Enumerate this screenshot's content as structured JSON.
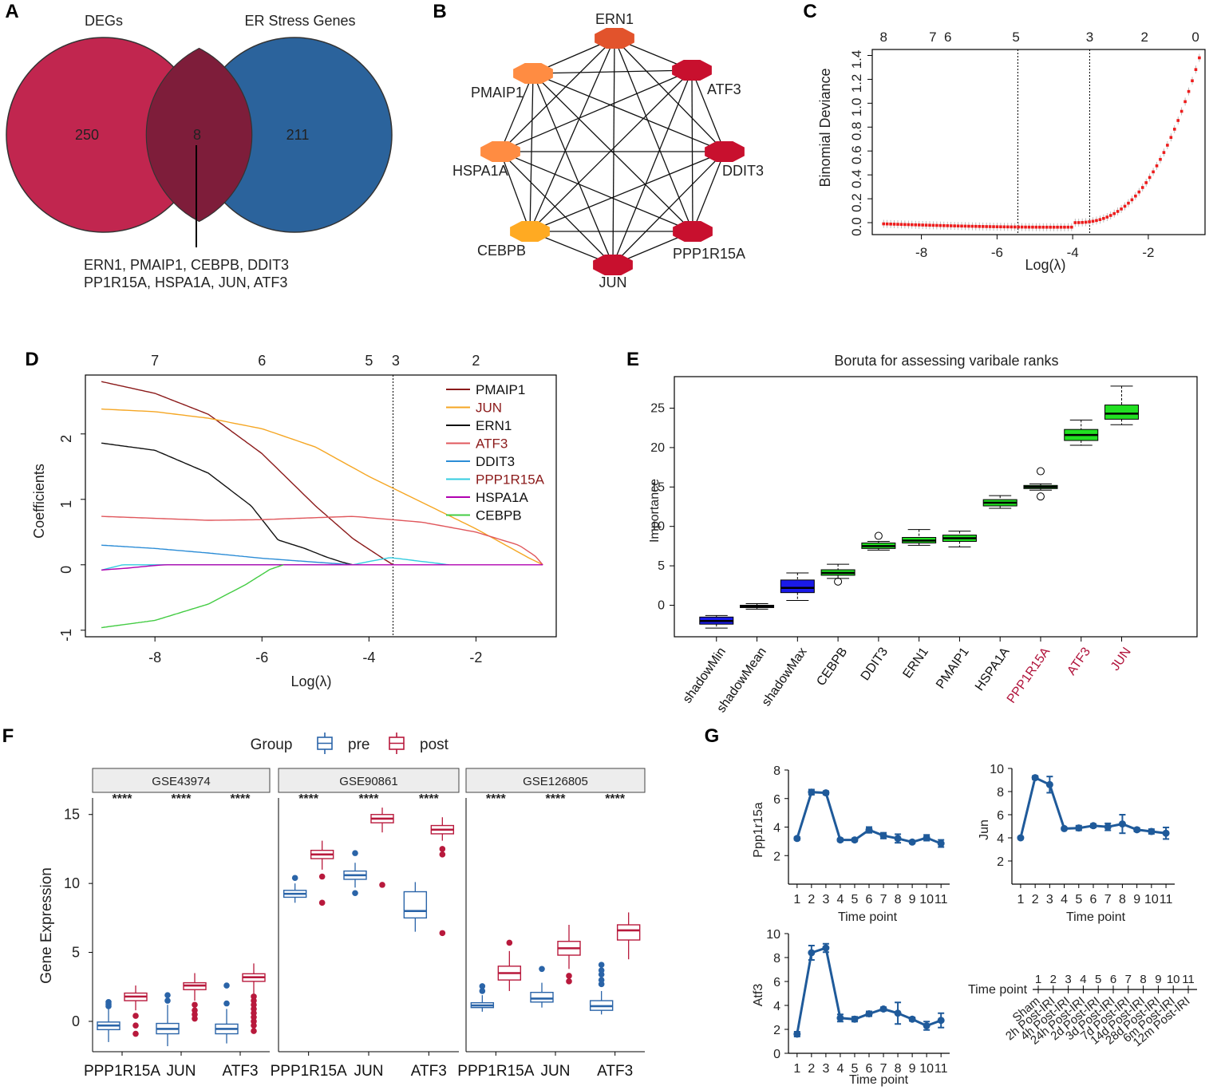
{
  "panel_letters": [
    "A",
    "B",
    "C",
    "D",
    "E",
    "F",
    "G"
  ],
  "colors": {
    "red": "#c1264f",
    "blue": "#2b639c",
    "overlap": "#7e1d3a",
    "node_red": "#c8102e",
    "node_orange": "#ff8c42",
    "node_yellow": "#ffaa22",
    "node_orangered": "#e2532c",
    "lasso_red": "#ee1c1c",
    "boruta_green": "#22e022",
    "boruta_blue": "#1a1ae8",
    "pre": "#2a64a8",
    "post": "#b8193c",
    "line_blue": "#1f5a9a",
    "label_red": "#b0123a",
    "dark_red": "#8b1a1a"
  },
  "chart_data": [
    {
      "panel": "A",
      "type": "venn",
      "sets": [
        {
          "name": "DEGs",
          "count": 250
        },
        {
          "name": "ER Stress Genes",
          "count": 211
        }
      ],
      "overlap": 8,
      "overlap_genes_line1": "ERN1, PMAIP1, CEBPB, DDIT3",
      "overlap_genes_line2": "PP1R15A, HSPA1A, JUN, ATF3"
    },
    {
      "panel": "B",
      "type": "network",
      "nodes": [
        {
          "name": "ERN1",
          "color": "orangered"
        },
        {
          "name": "ATF3",
          "color": "red"
        },
        {
          "name": "DDIT3",
          "color": "red"
        },
        {
          "name": "PPP1R15A",
          "color": "red"
        },
        {
          "name": "JUN",
          "color": "red"
        },
        {
          "name": "CEBPB",
          "color": "yellow"
        },
        {
          "name": "HSPA1A",
          "color": "orange"
        },
        {
          "name": "PMAIP1",
          "color": "orange"
        }
      ],
      "edges": "all pairs connected"
    },
    {
      "panel": "C",
      "type": "scatter",
      "xlabel": "Log(λ)",
      "ylabel": "Binomial Deviance",
      "xlim": [
        -9.3,
        -0.5
      ],
      "ylim": [
        -0.1,
        1.45
      ],
      "xticks": [
        -8,
        -6,
        -4,
        -2
      ],
      "yticks": [
        0.0,
        0.2,
        0.4,
        0.6,
        0.8,
        1.0,
        1.2,
        1.4
      ],
      "top_axis": [
        {
          "x": -9.0,
          "label": "8"
        },
        {
          "x": -7.7,
          "label": "7"
        },
        {
          "x": -7.3,
          "label": "6"
        },
        {
          "x": -5.5,
          "label": "5"
        },
        {
          "x": -3.55,
          "label": "3"
        },
        {
          "x": -2.1,
          "label": "2"
        },
        {
          "x": -0.75,
          "label": "0"
        }
      ],
      "vlines": [
        -5.45,
        -3.55
      ],
      "curve": {
        "x_start": -9.0,
        "x_end": -0.65,
        "n_points": 90,
        "note": "deviance ≈ 0 until about -4, rising to 1.38 at -0.65"
      }
    },
    {
      "panel": "D",
      "type": "line",
      "xlabel": "Log(λ)",
      "ylabel": "Coefficients",
      "xlim": [
        -9.3,
        -0.5
      ],
      "ylim": [
        -1.1,
        2.9
      ],
      "xticks": [
        -8,
        -6,
        -4,
        -2
      ],
      "yticks": [
        -1,
        0,
        1,
        2
      ],
      "top_axis": [
        {
          "x": -8.0,
          "label": "7"
        },
        {
          "x": -6.0,
          "label": "6"
        },
        {
          "x": -4.0,
          "label": "5"
        },
        {
          "x": -3.5,
          "label": "3"
        },
        {
          "x": -2.0,
          "label": "2"
        }
      ],
      "vline": -3.55,
      "series": [
        {
          "name": "PMAIP1",
          "color": "#8b1a1a",
          "label_color": "#111111",
          "x": [
            -9,
            -8,
            -7,
            -6,
            -5,
            -4.3,
            -3.8,
            -3.55
          ],
          "values": [
            2.8,
            2.62,
            2.3,
            1.7,
            0.9,
            0.4,
            0.13,
            0
          ]
        },
        {
          "name": "JUN",
          "color": "#f5a623",
          "label_color": "#8b1a1a",
          "x": [
            -9,
            -8,
            -7,
            -6,
            -5,
            -4,
            -3,
            -2,
            -1,
            -0.75
          ],
          "values": [
            2.38,
            2.34,
            2.24,
            2.08,
            1.8,
            1.35,
            0.95,
            0.55,
            0.1,
            0
          ]
        },
        {
          "name": "ERN1",
          "color": "#111111",
          "label_color": "#111111",
          "x": [
            -9,
            -8,
            -7,
            -6.2,
            -5.7,
            -5.2,
            -4.8,
            -4.5,
            -4.3
          ],
          "values": [
            1.86,
            1.75,
            1.4,
            0.9,
            0.38,
            0.25,
            0.12,
            0.04,
            0
          ]
        },
        {
          "name": "ATF3",
          "color": "#e0575c",
          "label_color": "#8b1a1a",
          "x": [
            -9,
            -8,
            -7,
            -6,
            -5,
            -4.3,
            -4,
            -3,
            -2,
            -1.2,
            -0.9,
            -0.75
          ],
          "values": [
            0.74,
            0.71,
            0.68,
            0.69,
            0.72,
            0.74,
            0.72,
            0.65,
            0.5,
            0.3,
            0.14,
            0
          ]
        },
        {
          "name": "DDIT3",
          "color": "#2b8cd6",
          "label_color": "#111111",
          "x": [
            -9,
            -8,
            -7,
            -6,
            -5,
            -4.3
          ],
          "values": [
            0.3,
            0.25,
            0.18,
            0.1,
            0.04,
            0
          ]
        },
        {
          "name": "PPP1R15A",
          "color": "#33cce0",
          "label_color": "#8b1a1a",
          "x": [
            -9,
            -8.6,
            -8.4,
            -6,
            -4.3,
            -4.0,
            -3.6,
            -3.0,
            -2.5
          ],
          "values": [
            -0.08,
            0,
            0,
            0,
            0,
            0.05,
            0.11,
            0.05,
            0
          ]
        },
        {
          "name": "HSPA1A",
          "color": "#b000b0",
          "label_color": "#111111",
          "x": [
            -9,
            -8.5,
            -8.0,
            -7.8,
            -0.75
          ],
          "values": [
            -0.08,
            -0.05,
            -0.01,
            0,
            0
          ]
        },
        {
          "name": "CEBPB",
          "color": "#44cc44",
          "label_color": "#111111",
          "x": [
            -9,
            -8,
            -7,
            -6.3,
            -5.85,
            -5.6
          ],
          "values": [
            -0.96,
            -0.85,
            -0.6,
            -0.3,
            -0.07,
            0
          ]
        }
      ]
    },
    {
      "panel": "E",
      "type": "box",
      "title": "Boruta for assessing varibale ranks",
      "ylabel": "Importance",
      "ylim": [
        -4,
        29
      ],
      "yticks": [
        0,
        5,
        10,
        15,
        20,
        25
      ],
      "boxes": [
        {
          "name": "shadowMin",
          "fill": "blue",
          "label_color": "#111111",
          "min": -2.9,
          "q1": -2.4,
          "median": -2.0,
          "q3": -1.5,
          "max": -1.3,
          "outliers": []
        },
        {
          "name": "shadowMean",
          "fill": "blue",
          "label_color": "#111111",
          "min": -0.5,
          "q1": -0.3,
          "median": -0.15,
          "q3": 0.0,
          "max": 0.2,
          "outliers": []
        },
        {
          "name": "shadowMax",
          "fill": "blue",
          "label_color": "#111111",
          "min": 0.6,
          "q1": 1.6,
          "median": 2.2,
          "q3": 3.2,
          "max": 4.1,
          "outliers": []
        },
        {
          "name": "CEBPB",
          "fill": "green",
          "label_color": "#111111",
          "min": 3.4,
          "q1": 3.8,
          "median": 4.1,
          "q3": 4.5,
          "max": 5.2,
          "outliers": [
            3.0
          ]
        },
        {
          "name": "DDIT3",
          "fill": "green",
          "label_color": "#111111",
          "min": 7.0,
          "q1": 7.2,
          "median": 7.5,
          "q3": 7.9,
          "max": 8.1,
          "outliers": [
            8.8
          ]
        },
        {
          "name": "ERN1",
          "fill": "green",
          "label_color": "#111111",
          "min": 7.6,
          "q1": 7.9,
          "median": 8.2,
          "q3": 8.6,
          "max": 9.6,
          "outliers": []
        },
        {
          "name": "PMAIP1",
          "fill": "green",
          "label_color": "#111111",
          "min": 7.4,
          "q1": 8.1,
          "median": 8.5,
          "q3": 8.9,
          "max": 9.4,
          "outliers": []
        },
        {
          "name": "HSPA1A",
          "fill": "green",
          "label_color": "#111111",
          "min": 12.3,
          "q1": 12.6,
          "median": 13.0,
          "q3": 13.4,
          "max": 13.9,
          "outliers": []
        },
        {
          "name": "PPP1R15A",
          "fill": "green",
          "label_color": "#b0123a",
          "min": 14.6,
          "q1": 14.8,
          "median": 15.0,
          "q3": 15.2,
          "max": 15.4,
          "outliers": [
            17.0,
            13.8
          ]
        },
        {
          "name": "ATF3",
          "fill": "green",
          "label_color": "#b0123a",
          "min": 20.3,
          "q1": 20.9,
          "median": 21.6,
          "q3": 22.3,
          "max": 23.5,
          "outliers": []
        },
        {
          "name": "JUN",
          "fill": "green",
          "label_color": "#b0123a",
          "min": 22.9,
          "q1": 23.6,
          "median": 24.3,
          "q3": 25.4,
          "max": 27.8,
          "outliers": []
        }
      ]
    },
    {
      "panel": "F",
      "type": "box",
      "legend": {
        "title": "Group",
        "items": [
          "pre",
          "post"
        ]
      },
      "ylabel": "Gene Expression",
      "ylim": [
        -2.2,
        16.2
      ],
      "yticks": [
        0,
        5,
        10,
        15
      ],
      "significance": "****",
      "categories": [
        "PPP1R15A",
        "JUN",
        "ATF3"
      ],
      "facets": [
        {
          "name": "GSE43974",
          "groups": [
            {
              "gene": "PPP1R15A",
              "pre": {
                "min": -1.5,
                "q1": -0.6,
                "median": -0.3,
                "q3": -0.05,
                "max": 0.9,
                "outliers": [
                  1.1,
                  1.25,
                  1.4
                ]
              },
              "post": {
                "min": 0.8,
                "q1": 1.5,
                "median": 1.8,
                "q3": 2.05,
                "max": 2.6,
                "outliers": [
                  0.4,
                  -0.3,
                  -0.9
                ]
              }
            },
            {
              "gene": "JUN",
              "pre": {
                "min": -1.8,
                "q1": -0.9,
                "median": -0.55,
                "q3": -0.15,
                "max": 1.2,
                "outliers": [
                  1.5,
                  1.9
                ]
              },
              "post": {
                "min": 1.5,
                "q1": 2.3,
                "median": 2.6,
                "q3": 2.8,
                "max": 3.5,
                "outliers": [
                  1.2,
                  0.8,
                  0.5,
                  0.2
                ]
              }
            },
            {
              "gene": "ATF3",
              "pre": {
                "min": -1.6,
                "q1": -0.9,
                "median": -0.55,
                "q3": -0.2,
                "max": 0.9,
                "outliers": [
                  1.3,
                  2.6
                ]
              },
              "post": {
                "min": 2.0,
                "q1": 2.9,
                "median": 3.2,
                "q3": 3.45,
                "max": 4.2,
                "outliers": [
                  1.8,
                  1.5,
                  1.2,
                  0.9,
                  0.6,
                  0.3,
                  0.0,
                  -0.3,
                  -0.7
                ]
              }
            }
          ]
        },
        {
          "name": "GSE90861",
          "groups": [
            {
              "gene": "PPP1R15A",
              "pre": {
                "min": 8.6,
                "q1": 9.0,
                "median": 9.25,
                "q3": 9.5,
                "max": 10.0,
                "outliers": [
                  10.4
                ]
              },
              "post": {
                "min": 11.0,
                "q1": 11.8,
                "median": 12.1,
                "q3": 12.4,
                "max": 13.1,
                "outliers": [
                  10.5,
                  8.6
                ]
              }
            },
            {
              "gene": "JUN",
              "pre": {
                "min": 9.7,
                "q1": 10.3,
                "median": 10.6,
                "q3": 10.9,
                "max": 11.5,
                "outliers": [
                  9.3,
                  12.2
                ]
              },
              "post": {
                "min": 13.7,
                "q1": 14.4,
                "median": 14.7,
                "q3": 15.0,
                "max": 15.5,
                "outliers": [
                  9.9
                ]
              }
            },
            {
              "gene": "ATF3",
              "pre": {
                "min": 6.5,
                "q1": 7.5,
                "median": 8.0,
                "q3": 9.4,
                "max": 10.1,
                "outliers": []
              },
              "post": {
                "min": 13.1,
                "q1": 13.6,
                "median": 13.9,
                "q3": 14.2,
                "max": 14.8,
                "outliers": [
                  12.5,
                  12.1,
                  6.4
                ]
              }
            }
          ]
        },
        {
          "name": "GSE126805",
          "groups": [
            {
              "gene": "PPP1R15A",
              "pre": {
                "min": 0.7,
                "q1": 1.0,
                "median": 1.15,
                "q3": 1.35,
                "max": 1.9,
                "outliers": [
                  2.2,
                  2.55
                ]
              },
              "post": {
                "min": 2.2,
                "q1": 3.0,
                "median": 3.5,
                "q3": 4.0,
                "max": 5.1,
                "outliers": [
                  5.7
                ]
              }
            },
            {
              "gene": "JUN",
              "pre": {
                "min": 1.0,
                "q1": 1.4,
                "median": 1.65,
                "q3": 2.1,
                "max": 2.8,
                "outliers": [
                  3.8
                ]
              },
              "post": {
                "min": 3.8,
                "q1": 4.8,
                "median": 5.3,
                "q3": 5.8,
                "max": 7.0,
                "outliers": [
                  3.3,
                  2.9
                ]
              }
            },
            {
              "gene": "ATF3",
              "pre": {
                "min": 0.5,
                "q1": 0.8,
                "median": 1.1,
                "q3": 1.5,
                "max": 2.2,
                "outliers": [
                  2.7,
                  3.0,
                  3.4,
                  3.7,
                  4.1
                ]
              },
              "post": {
                "min": 4.5,
                "q1": 5.9,
                "median": 6.6,
                "q3": 7.0,
                "max": 7.9,
                "outliers": []
              }
            }
          ]
        }
      ]
    },
    {
      "panel": "G",
      "type": "line",
      "xlabel": "Time point",
      "series": [
        {
          "name": "Ppp1r15a",
          "ylim": [
            0,
            8
          ],
          "yticks": [
            2,
            4,
            6,
            8
          ],
          "x": [
            1,
            2,
            3,
            4,
            5,
            6,
            7,
            8,
            9,
            10,
            11
          ],
          "values": [
            3.2,
            6.45,
            6.4,
            3.1,
            3.1,
            3.8,
            3.4,
            3.2,
            2.95,
            3.25,
            2.85
          ],
          "err": [
            0.1,
            0.18,
            0.12,
            0.1,
            0.1,
            0.2,
            0.2,
            0.3,
            0.1,
            0.2,
            0.25
          ]
        },
        {
          "name": "Jun",
          "ylim": [
            0,
            10
          ],
          "yticks": [
            2,
            4,
            6,
            8,
            10
          ],
          "x": [
            1,
            2,
            3,
            4,
            5,
            6,
            7,
            8,
            9,
            10,
            11
          ],
          "values": [
            4.0,
            9.2,
            8.6,
            4.8,
            4.85,
            5.05,
            4.95,
            5.2,
            4.7,
            4.55,
            4.4
          ],
          "err": [
            0.1,
            0.15,
            0.7,
            0.1,
            0.2,
            0.15,
            0.3,
            0.8,
            0.15,
            0.2,
            0.5
          ]
        },
        {
          "name": "Atf3",
          "ylim": [
            0,
            10
          ],
          "yticks": [
            0,
            2,
            4,
            6,
            8,
            10
          ],
          "x": [
            1,
            2,
            3,
            4,
            5,
            6,
            7,
            8,
            9,
            10,
            11
          ],
          "values": [
            1.6,
            8.4,
            8.8,
            2.95,
            2.85,
            3.3,
            3.7,
            3.35,
            2.85,
            2.3,
            2.75
          ],
          "err": [
            0.2,
            0.6,
            0.35,
            0.3,
            0.2,
            0.2,
            0.15,
            0.9,
            0.15,
            0.35,
            0.6
          ]
        }
      ],
      "time_key": {
        "title": "Time point",
        "points": [
          "1",
          "2",
          "3",
          "4",
          "5",
          "6",
          "7",
          "8",
          "9",
          "10",
          "11"
        ],
        "labels": [
          "Sham",
          "2h Post-IRI",
          "4h Post-IRI",
          "24h Post-IRI",
          "2d Post-IRI",
          "3d Post-IRI",
          "7d Post-IRI",
          "14d Post-IRI",
          "28d Post-IRI",
          "6m Post-IRI",
          "12m Post-IRI"
        ]
      }
    }
  ]
}
